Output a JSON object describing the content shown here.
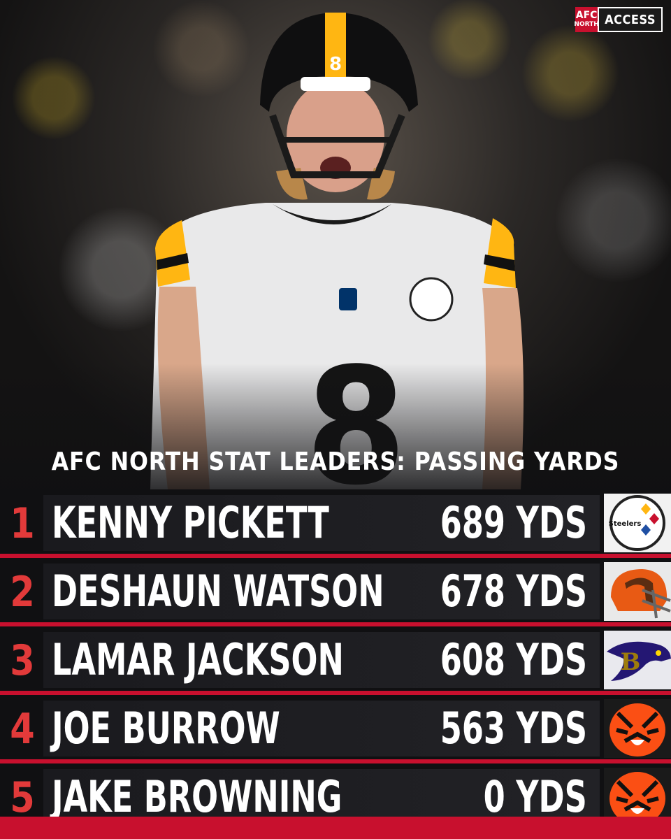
{
  "brand": {
    "shield_top": "AFC",
    "shield_bottom": "NORTH",
    "label": "ACCESS"
  },
  "headline": "AFC NORTH STAT LEADERS: PASSING YARDS",
  "leaders": [
    {
      "rank": "1",
      "player": "KENNY PICKETT",
      "yards": "689 YDS",
      "team_logo": "steelers-logo"
    },
    {
      "rank": "2",
      "player": "DESHAUN WATSON",
      "yards": "678 YDS",
      "team_logo": "browns-logo"
    },
    {
      "rank": "3",
      "player": "LAMAR JACKSON",
      "yards": "608 YDS",
      "team_logo": "ravens-logo"
    },
    {
      "rank": "4",
      "player": "JOE BURROW",
      "yards": "563 YDS",
      "team_logo": "bengals-logo"
    },
    {
      "rank": "5",
      "player": "JAKE BROWNING",
      "yards": "0 YDS",
      "team_logo": "bengals-logo"
    }
  ],
  "logo_text": {
    "steelers": "Steelers"
  },
  "colors": {
    "accent_red": "#c8102e",
    "rank_red": "#e23a3a",
    "bar": "#1e1e22"
  }
}
